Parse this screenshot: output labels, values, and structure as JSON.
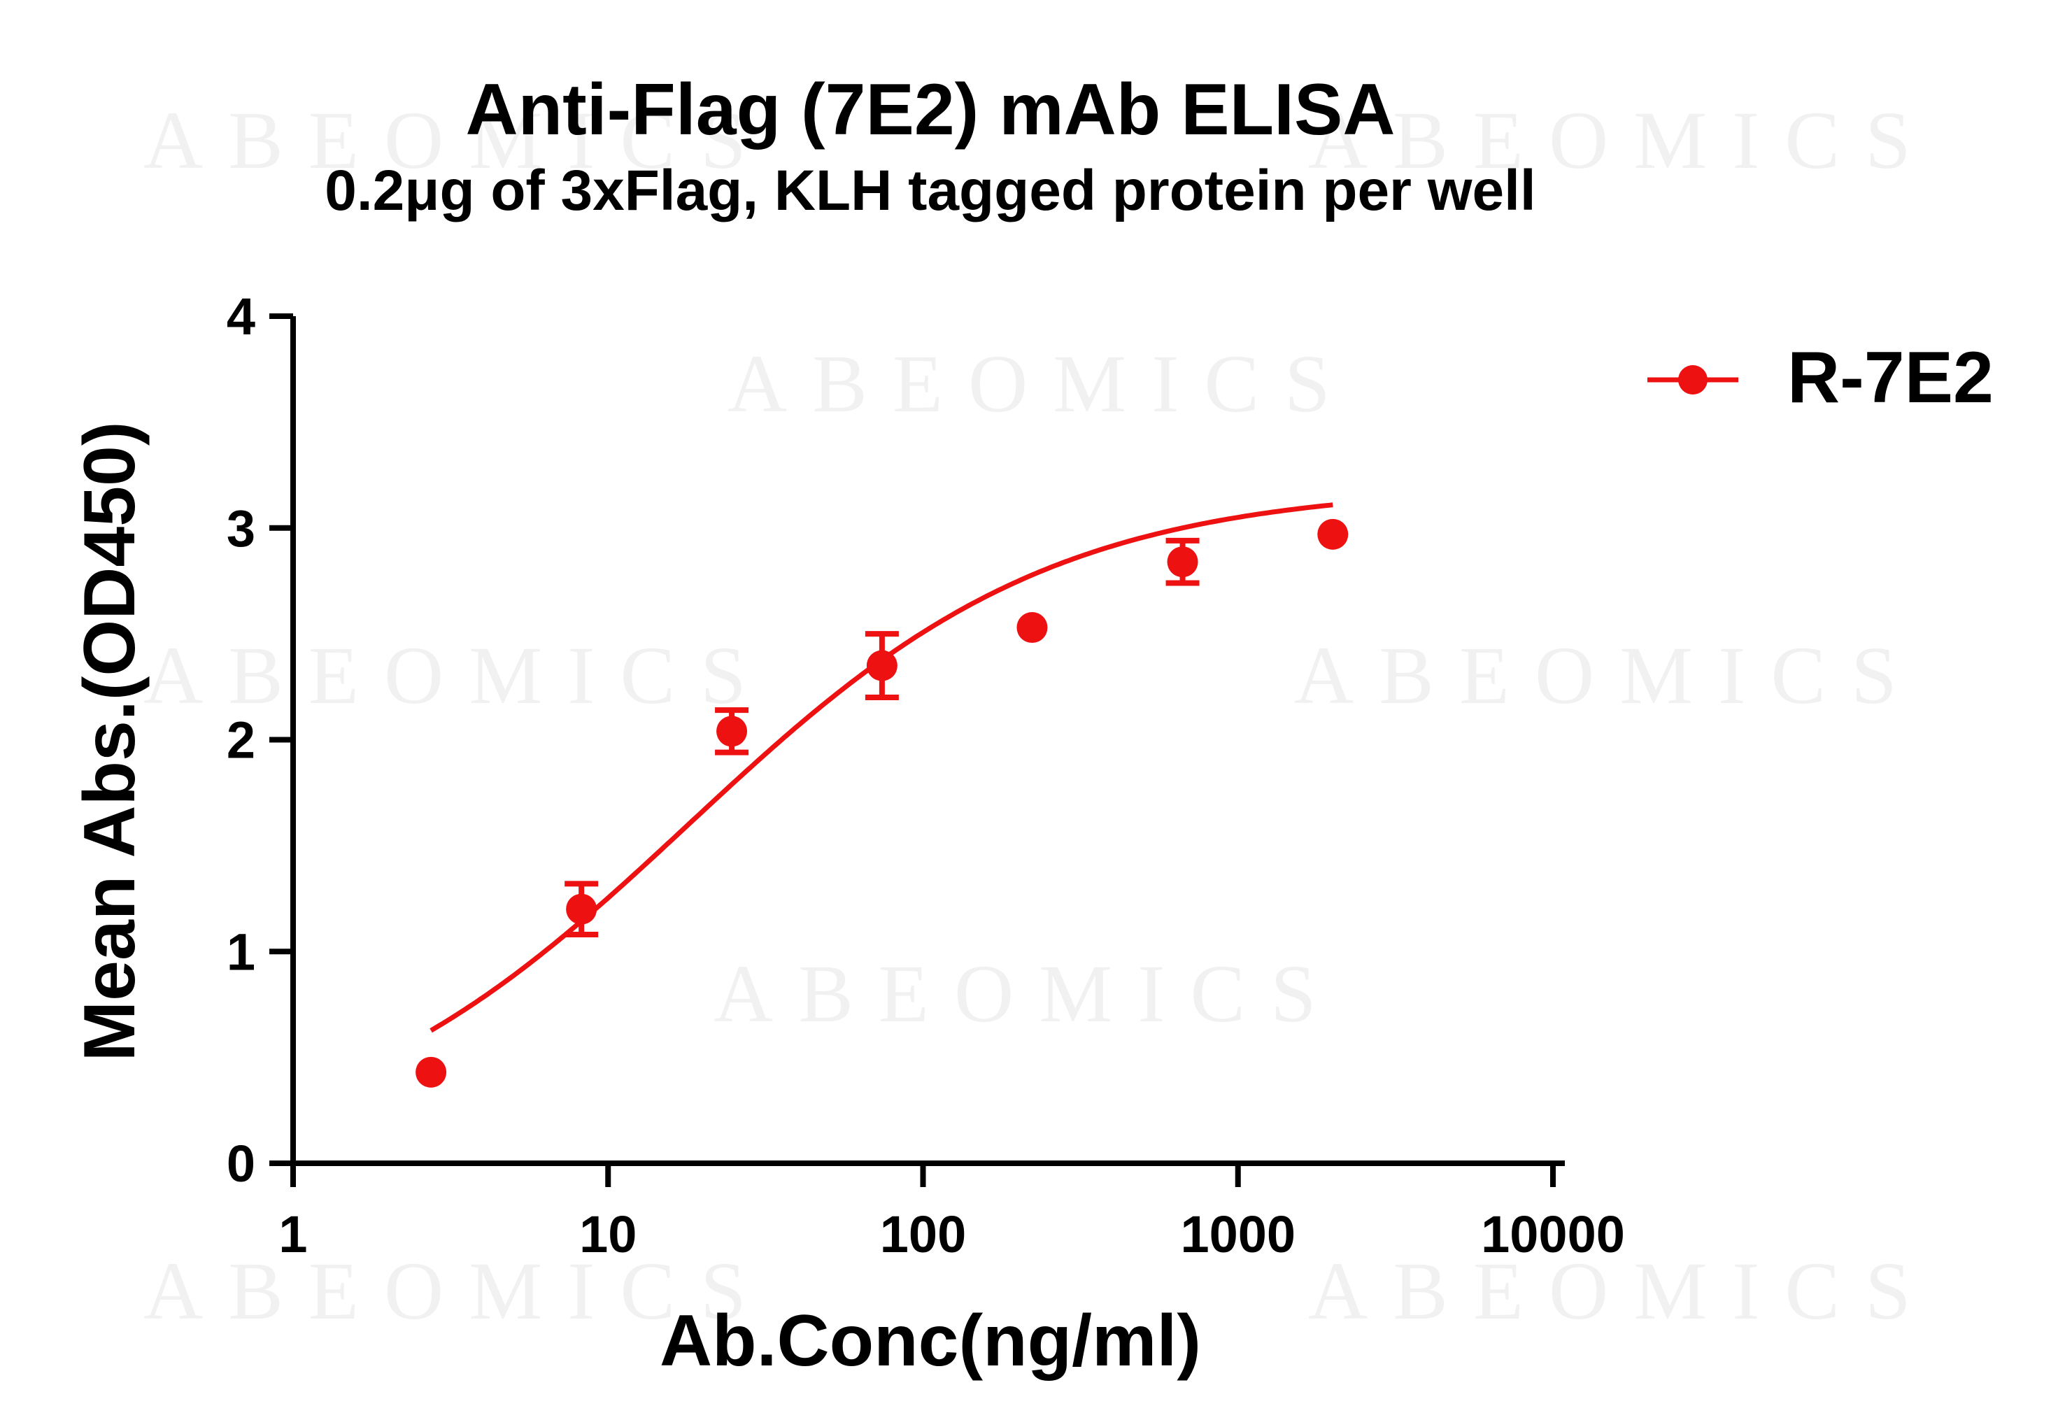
{
  "watermark": "ABEOMICS",
  "colors": {
    "series": "#ee1111",
    "axis": "#000000"
  },
  "chart_data": {
    "type": "scatter",
    "title": "Anti-Flag (7E2) mAb ELISA",
    "subtitle": "0.2μg of 3xFlag, KLH tagged protein per well",
    "xlabel": "Ab.Conc(ng/ml)",
    "ylabel": "Mean Abs.(OD450)",
    "xscale": "log",
    "xlim": [
      1,
      10000
    ],
    "ylim": [
      0,
      4
    ],
    "x_ticks": [
      1,
      10,
      100,
      1000,
      10000
    ],
    "x_tick_labels": [
      "1",
      "10",
      "100",
      "1000",
      "10000"
    ],
    "y_ticks": [
      0,
      1,
      2,
      3,
      4
    ],
    "y_tick_labels": [
      "0",
      "1",
      "2",
      "3",
      "4"
    ],
    "grid": false,
    "legend_position": "top-right",
    "series": [
      {
        "name": "R-7E2",
        "color": "#ee1111",
        "x": [
          2.74,
          8.23,
          24.7,
          74.1,
          222,
          667,
          2000
        ],
        "y": [
          0.43,
          1.2,
          2.04,
          2.35,
          2.53,
          2.84,
          2.97
        ],
        "error": [
          0.0,
          0.12,
          0.1,
          0.15,
          0.0,
          0.1,
          0.0
        ],
        "fit": "four-parameter logistic curve"
      }
    ]
  }
}
